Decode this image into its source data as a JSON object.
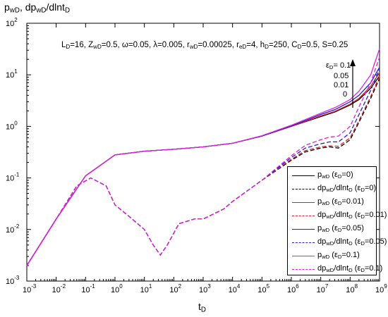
{
  "chart_data": {
    "type": "line",
    "y_axis_title": {
      "a": "p",
      "a_sub": "wD",
      "sep": ", dp",
      "b_sub": "wD",
      "c": "/dlnt",
      "c_sub": "D"
    },
    "x_axis_title": {
      "main": "t",
      "sub": "D"
    },
    "x_scale": "log",
    "y_scale": "log",
    "xlim": [
      0.001,
      1000000000
    ],
    "ylim": [
      0.001,
      100
    ],
    "x_tick_exponents": [
      -3,
      -2,
      -1,
      0,
      1,
      2,
      3,
      4,
      5,
      6,
      7,
      8,
      9
    ],
    "y_tick_exponents": [
      -3,
      -2,
      -1,
      0,
      1,
      2
    ],
    "tick_base": "10",
    "annotation": "L_D=16, Z_wD=0.5, ω=0.05, λ=0.005, r_wD=0.00025, r_eD=4, h_D=250, C_D=0.5, S=0.25",
    "params_text": [
      {
        "t": "L"
      },
      {
        "t": "D",
        "sub": true
      },
      {
        "t": "=16, Z"
      },
      {
        "t": "wD",
        "sub": true
      },
      {
        "t": "=0.5, ω=0.05, λ=0.005, r"
      },
      {
        "t": "wD",
        "sub": true
      },
      {
        "t": "=0.00025, r"
      },
      {
        "t": "eD",
        "sub": true
      },
      {
        "t": "=4, h"
      },
      {
        "t": "D",
        "sub": true
      },
      {
        "t": "=250, C"
      },
      {
        "t": "D",
        "sub": true
      },
      {
        "t": "=0.5, S=0.25"
      }
    ],
    "eps_arrow": {
      "title_main": "ε",
      "title_sub": "D",
      "title_suffix": "= 0.1",
      "labels": [
        "0.05",
        "0.01",
        "0"
      ]
    },
    "legend_position": "lower-right",
    "series": [
      {
        "name": "p_wD (ε_D=0)",
        "kind": "pressure",
        "color": "#000000",
        "dash": false,
        "x": [
          0.001,
          0.01,
          0.1,
          1,
          10,
          100,
          1000,
          10000,
          100000,
          1000000,
          10000000,
          30000000,
          100000000,
          200000000,
          500000000,
          1000000000
        ],
        "y": [
          0.002,
          0.016,
          0.11,
          0.28,
          0.33,
          0.36,
          0.4,
          0.47,
          0.65,
          1.0,
          1.55,
          1.9,
          2.6,
          3.3,
          5.5,
          9.5
        ]
      },
      {
        "name": "dp_wD/dlnt_D (ε_D=0)",
        "kind": "derivative",
        "color": "#000000",
        "dash": true,
        "x": [
          0.001,
          0.01,
          0.05,
          0.15,
          0.5,
          1,
          3,
          10,
          20,
          35,
          60,
          150,
          500,
          1000,
          5000,
          10000,
          100000,
          1000000,
          3000000,
          10000000,
          20000000,
          40000000,
          100000000,
          200000000,
          500000000,
          1000000000
        ],
        "y": [
          0.002,
          0.016,
          0.07,
          0.1,
          0.07,
          0.03,
          0.018,
          0.01,
          0.005,
          0.0032,
          0.005,
          0.013,
          0.016,
          0.016,
          0.025,
          0.035,
          0.09,
          0.22,
          0.32,
          0.38,
          0.4,
          0.38,
          0.55,
          1.2,
          3.5,
          8.5
        ]
      },
      {
        "name": "p_wD (ε_D=0.01)",
        "kind": "pressure",
        "color": "#e02020",
        "dash": false,
        "x": [
          0.001,
          0.01,
          0.1,
          1,
          10,
          100,
          1000,
          10000,
          100000,
          1000000,
          10000000,
          30000000,
          100000000,
          200000000,
          500000000,
          1000000000
        ],
        "y": [
          0.002,
          0.016,
          0.11,
          0.28,
          0.33,
          0.36,
          0.4,
          0.47,
          0.65,
          1.0,
          1.6,
          1.95,
          2.7,
          3.5,
          6.0,
          11
        ]
      },
      {
        "name": "dp_wD/dlnt_D (ε_D=0.01)",
        "kind": "derivative",
        "color": "#e02020",
        "dash": true,
        "x": [
          0.001,
          0.01,
          0.05,
          0.15,
          0.5,
          1,
          3,
          10,
          20,
          35,
          60,
          150,
          500,
          1000,
          5000,
          10000,
          100000,
          1000000,
          3000000,
          10000000,
          20000000,
          40000000,
          100000000,
          200000000,
          500000000,
          1000000000
        ],
        "y": [
          0.002,
          0.016,
          0.07,
          0.1,
          0.07,
          0.03,
          0.018,
          0.01,
          0.005,
          0.0032,
          0.005,
          0.013,
          0.016,
          0.016,
          0.025,
          0.035,
          0.09,
          0.23,
          0.34,
          0.4,
          0.42,
          0.41,
          0.6,
          1.3,
          3.8,
          9.5
        ]
      },
      {
        "name": "p_wD (ε_D=0.05)",
        "kind": "pressure",
        "color": "#2020d0",
        "dash": false,
        "x": [
          0.001,
          0.01,
          0.1,
          1,
          10,
          100,
          1000,
          10000,
          100000,
          1000000,
          10000000,
          30000000,
          100000000,
          200000000,
          500000000,
          1000000000
        ],
        "y": [
          0.002,
          0.016,
          0.11,
          0.28,
          0.33,
          0.36,
          0.4,
          0.47,
          0.65,
          1.02,
          1.7,
          2.1,
          3.0,
          4.0,
          7.0,
          14
        ]
      },
      {
        "name": "dp_wD/dlnt_D (ε_D=0.05)",
        "kind": "derivative",
        "color": "#2020d0",
        "dash": true,
        "x": [
          0.001,
          0.01,
          0.05,
          0.15,
          0.5,
          1,
          3,
          10,
          20,
          35,
          60,
          150,
          500,
          1000,
          5000,
          10000,
          100000,
          1000000,
          3000000,
          10000000,
          20000000,
          40000000,
          100000000,
          200000000,
          500000000,
          1000000000
        ],
        "y": [
          0.002,
          0.016,
          0.07,
          0.1,
          0.07,
          0.03,
          0.018,
          0.01,
          0.005,
          0.0032,
          0.005,
          0.013,
          0.016,
          0.016,
          0.025,
          0.035,
          0.09,
          0.25,
          0.38,
          0.46,
          0.5,
          0.5,
          0.75,
          1.7,
          5.0,
          13
        ]
      },
      {
        "name": "p_wD (ε_D=0.1)",
        "kind": "pressure",
        "color": "#e020e0",
        "dash": false,
        "x": [
          0.001,
          0.01,
          0.1,
          1,
          10,
          100,
          1000,
          10000,
          100000,
          1000000,
          10000000,
          30000000,
          100000000,
          200000000,
          500000000,
          1000000000
        ],
        "y": [
          0.002,
          0.016,
          0.11,
          0.28,
          0.33,
          0.36,
          0.4,
          0.47,
          0.66,
          1.05,
          1.8,
          2.3,
          3.3,
          4.8,
          10,
          32
        ]
      },
      {
        "name": "dp_wD/dlnt_D (ε_D=0.1)",
        "kind": "derivative",
        "color": "#e020e0",
        "dash": true,
        "x": [
          0.001,
          0.01,
          0.05,
          0.15,
          0.5,
          1,
          3,
          10,
          20,
          35,
          60,
          150,
          500,
          1000,
          5000,
          10000,
          100000,
          1000000,
          3000000,
          10000000,
          20000000,
          40000000,
          100000000,
          200000000,
          500000000,
          1000000000
        ],
        "y": [
          0.002,
          0.016,
          0.07,
          0.1,
          0.07,
          0.03,
          0.018,
          0.01,
          0.005,
          0.0032,
          0.005,
          0.013,
          0.016,
          0.016,
          0.025,
          0.035,
          0.09,
          0.27,
          0.43,
          0.55,
          0.62,
          0.65,
          1.0,
          2.4,
          7.0,
          22
        ]
      }
    ]
  }
}
